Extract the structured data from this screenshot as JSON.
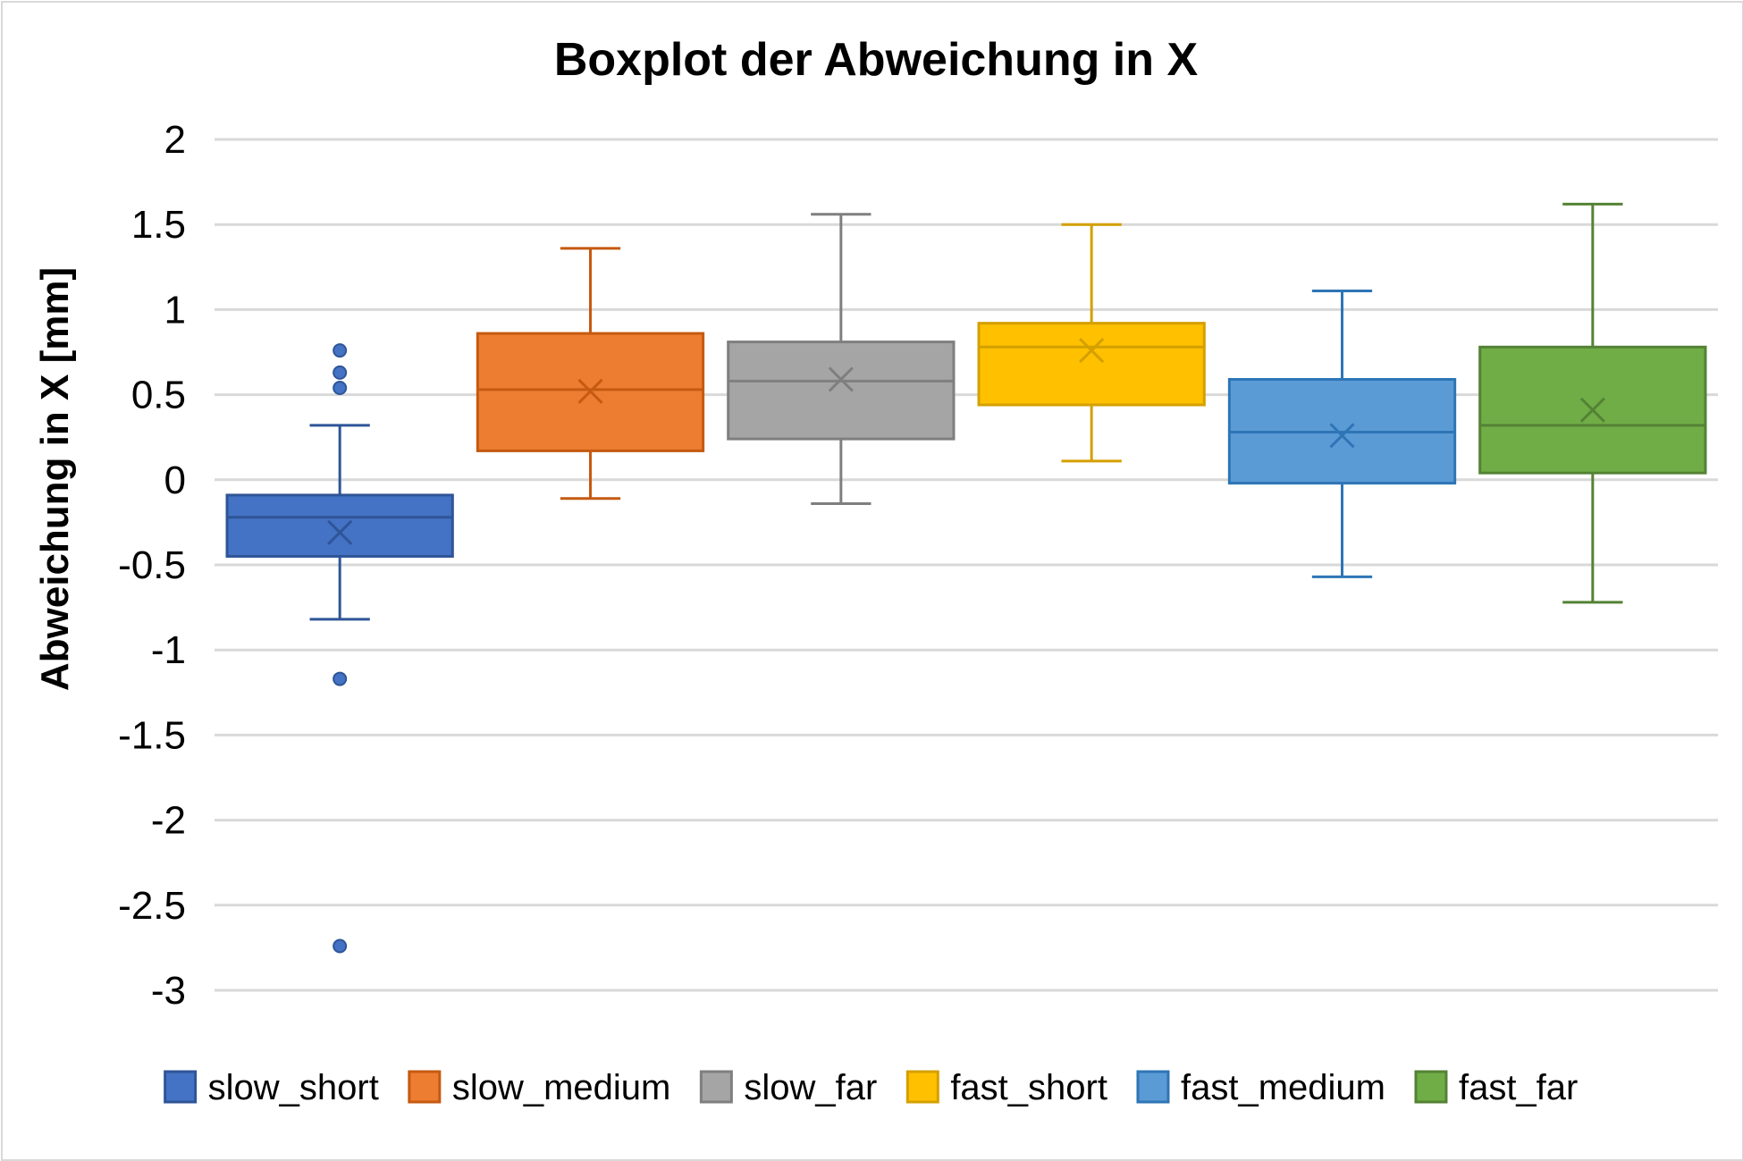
{
  "chart_data": {
    "type": "box",
    "title": "Boxplot der Abweichung in X",
    "xlabel": "",
    "ylabel": "Abweichung in X [mm]",
    "ylim": [
      -3,
      2
    ],
    "yticks": [
      2,
      1.5,
      1,
      0.5,
      0,
      -0.5,
      -1,
      -1.5,
      -2,
      -2.5,
      -3
    ],
    "ytick_labels": [
      "2",
      "1.5",
      "1",
      "0.5",
      "0",
      "-0.5",
      "-1",
      "-1.5",
      "-2",
      "-2.5",
      "-3"
    ],
    "grid": true,
    "legend_position": "bottom",
    "series": [
      {
        "name": "slow_short",
        "color": "#4472c4",
        "stroke": "#2f5597",
        "min": -0.82,
        "q1": -0.45,
        "median": -0.22,
        "q3": -0.09,
        "max": 0.32,
        "mean": -0.31,
        "outliers": [
          0.76,
          0.63,
          0.54,
          -1.17,
          -2.74
        ]
      },
      {
        "name": "slow_medium",
        "color": "#ed7d31",
        "stroke": "#c55a11",
        "min": -0.11,
        "q1": 0.17,
        "median": 0.53,
        "q3": 0.86,
        "max": 1.36,
        "mean": 0.52,
        "outliers": []
      },
      {
        "name": "slow_far",
        "color": "#a5a5a5",
        "stroke": "#7f7f7f",
        "min": -0.14,
        "q1": 0.24,
        "median": 0.58,
        "q3": 0.81,
        "max": 1.56,
        "mean": 0.59,
        "outliers": []
      },
      {
        "name": "fast_short",
        "color": "#ffc000",
        "stroke": "#d4a000",
        "min": 0.11,
        "q1": 0.44,
        "median": 0.78,
        "q3": 0.92,
        "max": 1.5,
        "mean": 0.76,
        "outliers": []
      },
      {
        "name": "fast_medium",
        "color": "#5b9bd5",
        "stroke": "#2e75b6",
        "min": -0.57,
        "q1": -0.02,
        "median": 0.28,
        "q3": 0.59,
        "max": 1.11,
        "mean": 0.26,
        "outliers": []
      },
      {
        "name": "fast_far",
        "color": "#70ad47",
        "stroke": "#548235",
        "min": -0.72,
        "q1": 0.04,
        "median": 0.32,
        "q3": 0.78,
        "max": 1.62,
        "mean": 0.41,
        "outliers": []
      }
    ]
  }
}
